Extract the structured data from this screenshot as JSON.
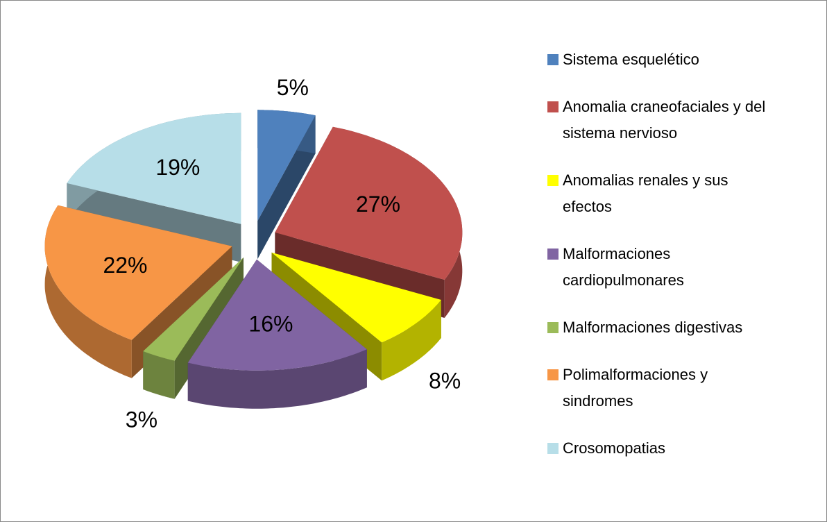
{
  "chart_data": {
    "type": "pie",
    "categories": [
      "Sistema esquelético",
      "Anomalia craneofaciales y del sistema nervioso",
      "Anomalias renales y sus efectos",
      "Malformaciones cardiopulmonares",
      "Malformaciones digestivas",
      "Polimalformaciones y sindromes",
      "Crosomopatias"
    ],
    "values": [
      5,
      27,
      8,
      16,
      3,
      22,
      19
    ],
    "value_labels": [
      "5%",
      "27%",
      "8%",
      "16%",
      "3%",
      "22%",
      "19%"
    ],
    "colors": [
      "#4f81bd",
      "#c0504d",
      "#ffff00",
      "#8064a2",
      "#9bbb59",
      "#f79646",
      "#b7dee8"
    ],
    "legend": "right"
  }
}
